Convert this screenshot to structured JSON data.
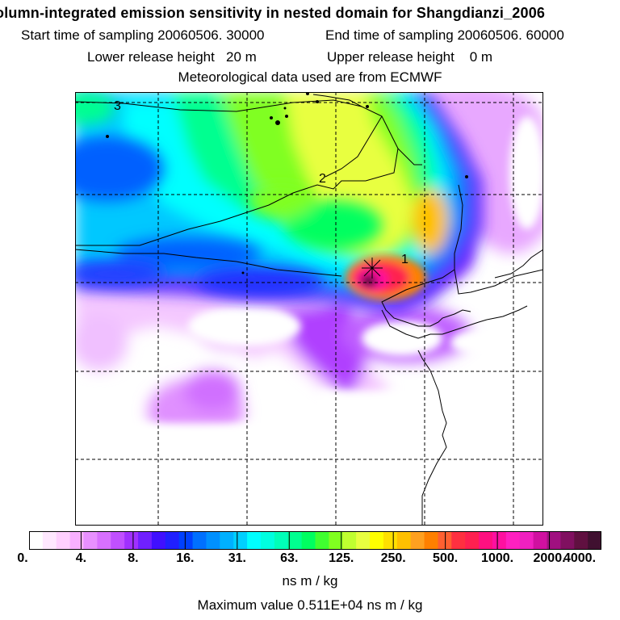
{
  "header": {
    "title": "olumn-integrated emission sensitivity in nested domain for Shangdianzi_2006",
    "start_label": "Start time of sampling 20060506. 30000",
    "end_label": "End time of sampling 20060506. 60000",
    "lower_label": "Lower release height   20 m",
    "upper_label": "Upper release height    0 m",
    "met_label": "Meteorological data used are from ECMWF"
  },
  "map": {
    "contour_labels": [
      "3",
      "2",
      "1"
    ],
    "colors": {
      "ocean_low": "#0060ff",
      "cyan": "#00ffff",
      "green": "#00ff60",
      "yellow": "#e8ff40",
      "orange": "#ffb020",
      "red": "#ff2050",
      "magenta": "#e040ff",
      "dark": "#40103c",
      "coastline": "#000000"
    }
  },
  "legend": {
    "tick_labels": [
      "0.",
      "4.",
      "8.",
      "16.",
      "31.",
      "63.",
      "125.",
      "250.",
      "500.",
      "1000.",
      "2000.",
      "4000."
    ],
    "band_colors": [
      "#ffffff",
      "#ffe8ff",
      "#ffd0ff",
      "#f8b0ff",
      "#e890ff",
      "#d870ff",
      "#c050ff",
      "#a030ff",
      "#7020ff",
      "#4010ff",
      "#2020ff",
      "#0040ff",
      "#0070ff",
      "#0090ff",
      "#00b0ff",
      "#00d0ff",
      "#00ffff",
      "#00ffe0",
      "#00ffb8",
      "#00ff90",
      "#00ff60",
      "#40ff30",
      "#80ff20",
      "#c0ff30",
      "#e8ff40",
      "#ffff00",
      "#ffe000",
      "#ffc000",
      "#ffa020",
      "#ff8000",
      "#ff6030",
      "#ff3040",
      "#ff2050",
      "#ff1080",
      "#ff10a0",
      "#ff20c0",
      "#f020c0",
      "#d010a0",
      "#a01080",
      "#801060",
      "#601040",
      "#401030"
    ],
    "units": "ns m / kg",
    "max_value": "Maximum value  0.511E+04 ns m / kg"
  }
}
